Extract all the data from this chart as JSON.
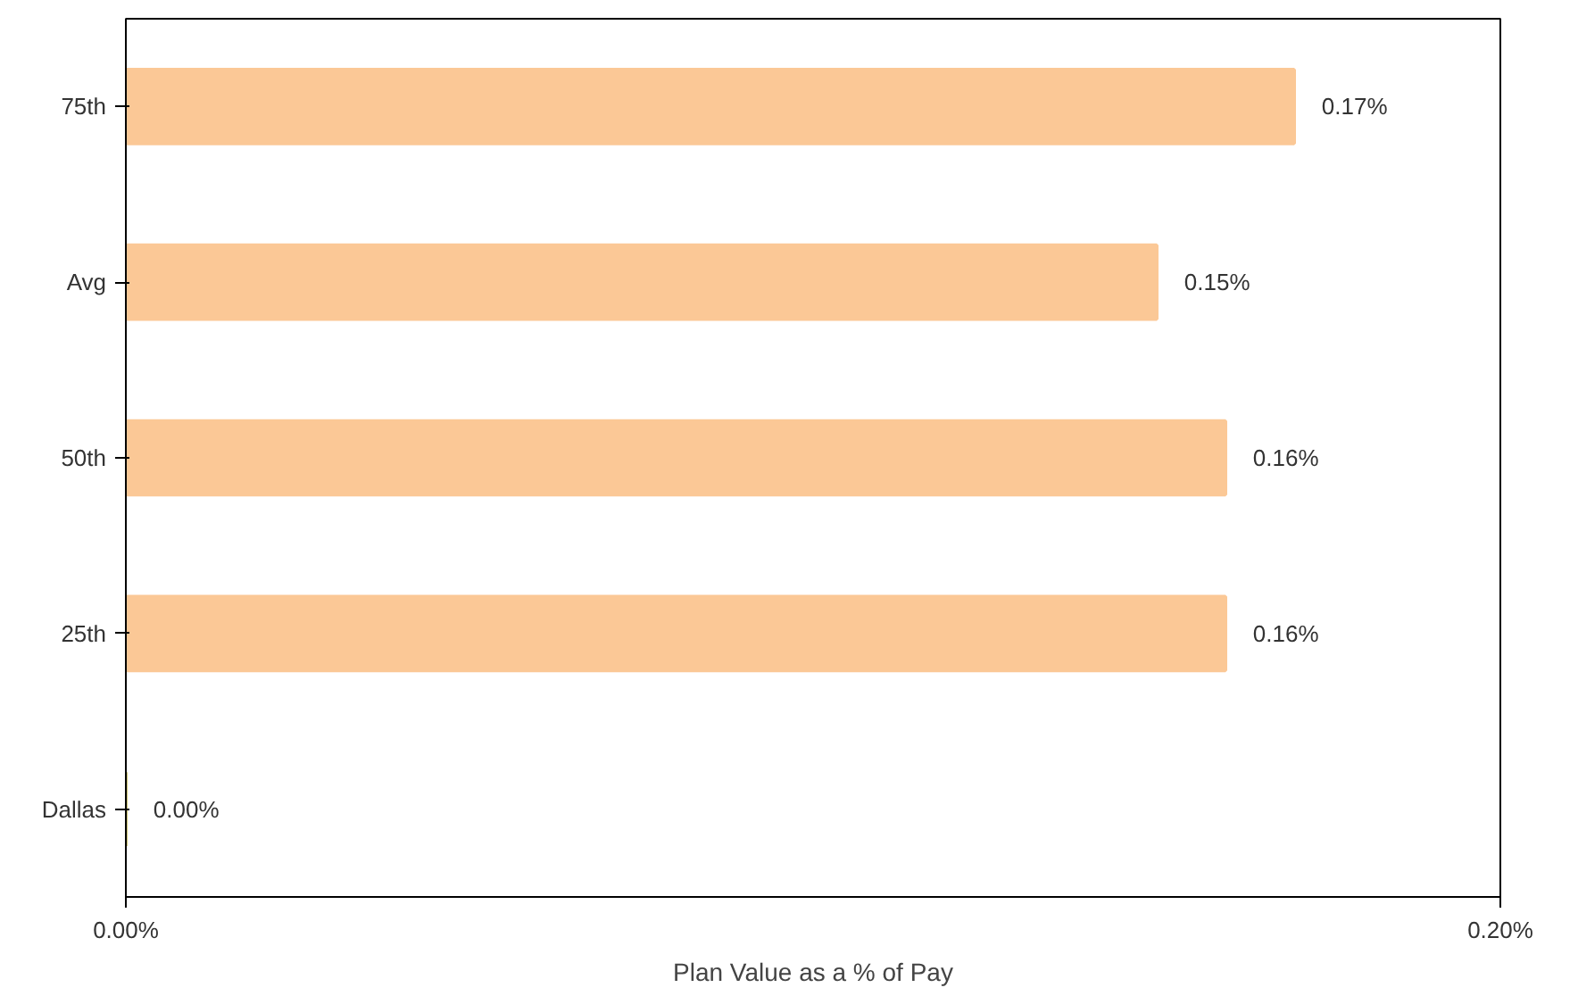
{
  "chart_data": {
    "type": "bar",
    "orientation": "horizontal",
    "xlabel": "Plan Value as a % of Pay",
    "categories": [
      "75th",
      "Avg",
      "50th",
      "25th",
      "Dallas"
    ],
    "values": [
      0.17,
      0.15,
      0.16,
      0.16,
      0.0
    ],
    "colors": [
      "#fbc896",
      "#fbc896",
      "#fbc896",
      "#fbc896",
      "#c8c070"
    ],
    "value_labels": [
      "0.17%",
      "0.15%",
      "0.16%",
      "0.16%",
      "0.00%"
    ],
    "xlim": [
      0,
      0.2
    ],
    "xticks": [
      {
        "value": 0,
        "label": "0.00%"
      },
      {
        "value": 0.2,
        "label": "0.20%"
      }
    ],
    "grid": false
  }
}
